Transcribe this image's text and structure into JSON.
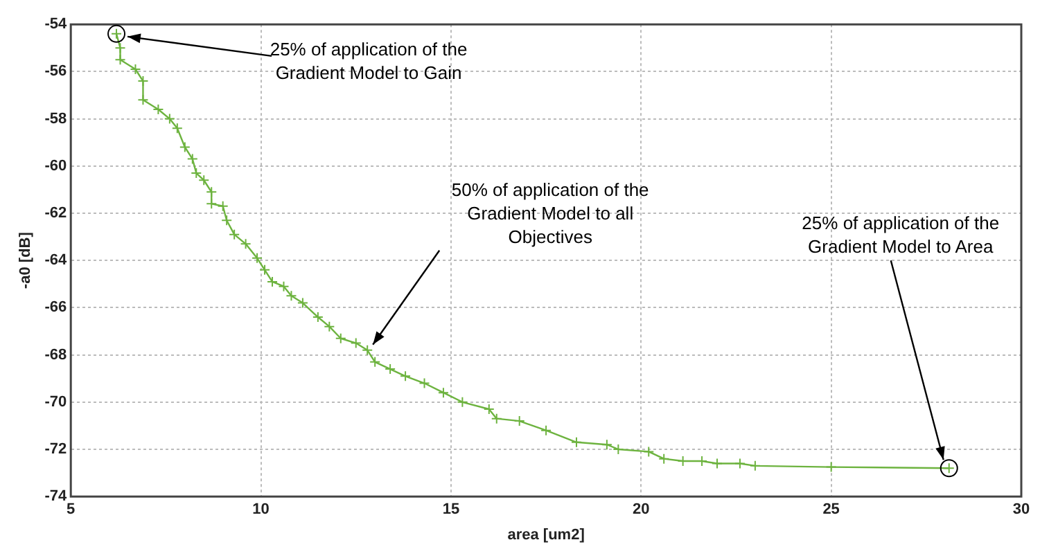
{
  "chart_data": {
    "type": "line",
    "xlabel": "area [um2]",
    "ylabel": "-a0 [dB]",
    "xlim": [
      5,
      30
    ],
    "xticks": [
      5,
      10,
      15,
      20,
      25,
      30
    ],
    "ylim": [
      -74,
      -54
    ],
    "yticks": [
      -74,
      -72,
      -70,
      -68,
      -66,
      -64,
      -62,
      -60,
      -58,
      -56,
      -54
    ],
    "grid": true,
    "marker": "cross",
    "line_style": "solid",
    "series": [
      {
        "color": "#6db33f",
        "x": [
          6.2,
          6.3,
          6.3,
          6.7,
          6.9,
          6.9,
          7.3,
          7.6,
          7.8,
          8.0,
          8.2,
          8.3,
          8.5,
          8.7,
          8.7,
          9.0,
          9.1,
          9.3,
          9.6,
          9.9,
          10.1,
          10.3,
          10.6,
          10.8,
          11.1,
          11.5,
          11.8,
          12.1,
          12.5,
          12.8,
          13.0,
          13.4,
          13.8,
          14.3,
          14.8,
          15.3,
          16.0,
          16.2,
          16.8,
          17.5,
          18.3,
          19.1,
          19.4,
          20.2,
          20.6,
          21.1,
          21.6,
          22.0,
          22.6,
          23.0,
          25.0,
          28.1
        ],
        "values": [
          -54.4,
          -55.0,
          -55.5,
          -55.9,
          -56.4,
          -57.2,
          -57.6,
          -58.0,
          -58.4,
          -59.2,
          -59.7,
          -60.3,
          -60.6,
          -61.1,
          -61.6,
          -61.7,
          -62.3,
          -62.9,
          -63.3,
          -63.9,
          -64.4,
          -64.9,
          -65.1,
          -65.5,
          -65.8,
          -66.4,
          -66.8,
          -67.3,
          -67.5,
          -67.8,
          -68.3,
          -68.6,
          -68.9,
          -69.2,
          -69.6,
          -70.0,
          -70.3,
          -70.7,
          -70.8,
          -71.2,
          -71.7,
          -71.8,
          -72.0,
          -72.1,
          -72.4,
          -72.5,
          -72.5,
          -72.6,
          -72.6,
          -72.7,
          -72.75,
          -72.8
        ]
      }
    ],
    "annotations": [
      {
        "text": "25% of application of the\nGradient Model to Gain",
        "x": 6.2,
        "y": -54.4
      },
      {
        "text": "50% of application of the\nGradient Model to all\nObjectives",
        "x": 12.8,
        "y": -67.8
      },
      {
        "text": "25% of application of the\nGradient Model to Area",
        "x": 28.1,
        "y": -72.8
      }
    ]
  }
}
